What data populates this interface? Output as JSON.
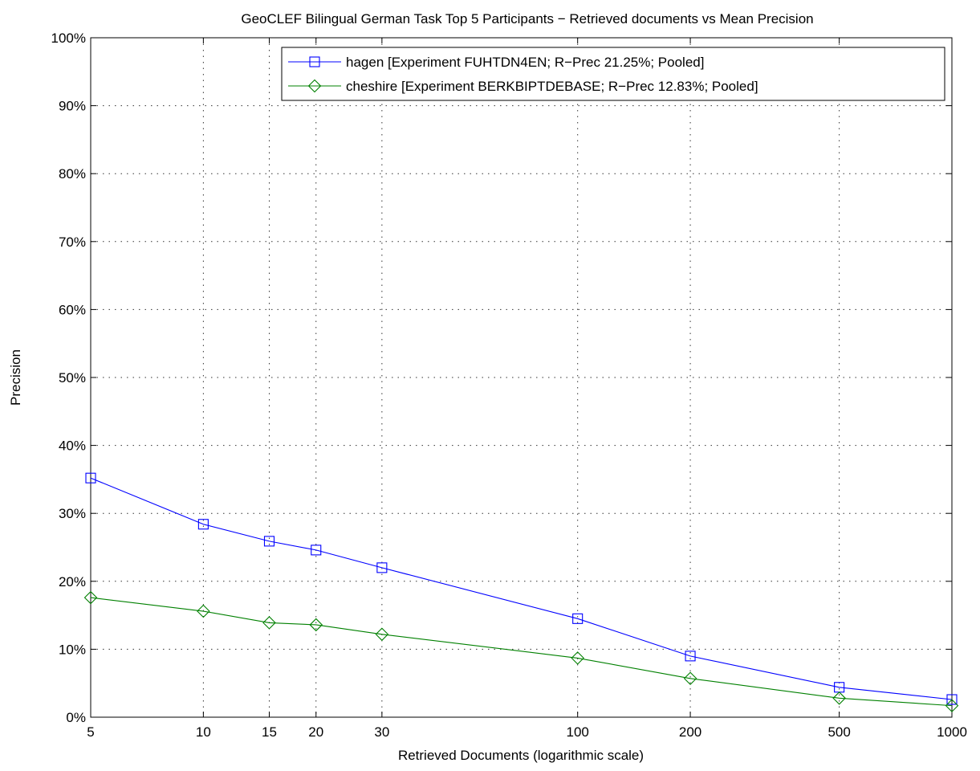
{
  "chart_data": {
    "type": "line",
    "title": "GeoCLEF Bilingual German Task Top 5 Participants − Retrieved documents vs Mean Precision",
    "xlabel": "Retrieved Documents (logarithmic scale)",
    "ylabel": "Precision",
    "x_scale": "log",
    "xlim": [
      5,
      1000
    ],
    "ylim": [
      0,
      100
    ],
    "x": [
      5,
      10,
      15,
      20,
      30,
      100,
      200,
      500,
      1000
    ],
    "x_tick_labels": [
      "5",
      "10",
      "15",
      "20",
      "30",
      "100",
      "200",
      "500",
      "1000"
    ],
    "y_ticks": [
      0,
      10,
      20,
      30,
      40,
      50,
      60,
      70,
      80,
      90,
      100
    ],
    "y_tick_labels": [
      "0%",
      "10%",
      "20%",
      "30%",
      "40%",
      "50%",
      "60%",
      "70%",
      "80%",
      "90%",
      "100%"
    ],
    "grid": true,
    "legend_position": "top-right",
    "series": [
      {
        "name": "hagen [Experiment FUHTDN4EN; R−Prec 21.25%; Pooled]",
        "color": "#0000ff",
        "marker": "square",
        "values": [
          35.2,
          28.4,
          25.9,
          24.6,
          22.0,
          14.5,
          9.0,
          4.4,
          2.6
        ]
      },
      {
        "name": "cheshire [Experiment BERKBIPTDEBASE; R−Prec 12.83%; Pooled]",
        "color": "#008000",
        "marker": "diamond",
        "values": [
          17.6,
          15.6,
          13.9,
          13.6,
          12.2,
          8.7,
          5.7,
          2.8,
          1.7
        ]
      }
    ]
  }
}
